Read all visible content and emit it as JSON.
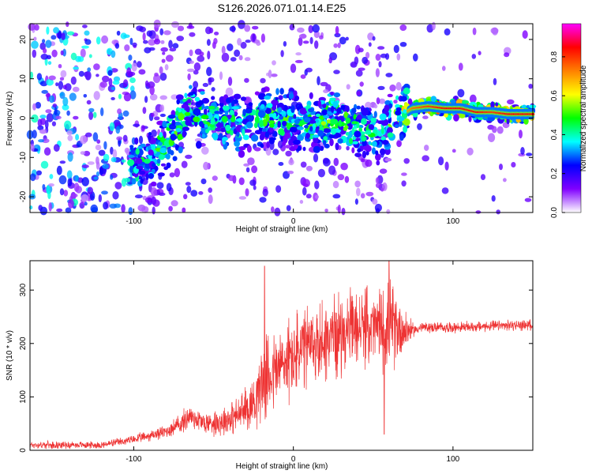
{
  "chart_data": [
    {
      "type": "heatmap",
      "title": "S126.2026.071.01.14.E25",
      "xlabel": "Height of straight line (km)",
      "ylabel": "Frequency (Hz)",
      "xlim": [
        -165,
        150
      ],
      "ylim": [
        -24,
        24
      ],
      "xticks": [
        -100,
        0,
        100
      ],
      "yticks": [
        -20,
        -10,
        0,
        10,
        20
      ],
      "colorbar": {
        "label": "Normalized spectral amplitude",
        "range": [
          0,
          0.97
        ],
        "ticks": [
          0.0,
          0.2,
          0.4,
          0.6,
          0.8
        ],
        "tick_labels": [
          "0.0",
          "0.2",
          "0.4",
          "0.6",
          "0.8"
        ],
        "colors": [
          "#ffffff",
          "#8000ff",
          "#0000ff",
          "#00ffff",
          "#00ff00",
          "#ffff00",
          "#ff8000",
          "#ff0000",
          "#ff00ff"
        ]
      },
      "ridge": {
        "x": [
          -100,
          -90,
          -80,
          -70,
          -65,
          -55,
          -45,
          -35,
          -25,
          -15,
          -5,
          5,
          15,
          25,
          35,
          45,
          55,
          65,
          75,
          85,
          95,
          105,
          115,
          125,
          135,
          150
        ],
        "y": [
          -12,
          -11,
          -6,
          -1,
          2,
          0,
          -1,
          -2,
          -1,
          1,
          0,
          -1,
          -2,
          1,
          -2,
          -3,
          -4,
          0,
          2.5,
          3,
          2.5,
          2.5,
          1.5,
          1.5,
          1,
          1
        ],
        "amplitude": [
          0.45,
          0.45,
          0.5,
          0.55,
          0.5,
          0.5,
          0.45,
          0.45,
          0.45,
          0.5,
          0.5,
          0.45,
          0.5,
          0.55,
          0.5,
          0.45,
          0.45,
          0.55,
          0.75,
          0.8,
          0.85,
          0.85,
          0.85,
          0.8,
          0.85,
          0.85
        ]
      },
      "x_tick_labels": [
        "-100",
        "0",
        "100"
      ],
      "y_tick_labels": [
        "-20",
        "-10",
        "0",
        "10",
        "20"
      ]
    },
    {
      "type": "line",
      "title": "",
      "xlabel": "Height of straight line (km)",
      "ylabel": "SNR (10 * v/v)",
      "xlim": [
        -165,
        150
      ],
      "ylim": [
        0,
        355
      ],
      "xticks": [
        -100,
        0,
        100
      ],
      "yticks": [
        0,
        100,
        200,
        300
      ],
      "x_tick_labels": [
        "-100",
        "0",
        "100"
      ],
      "y_tick_labels": [
        "0",
        "100",
        "200",
        "300"
      ],
      "series": [
        {
          "name": "SNR",
          "color": "#ee3333",
          "envelope": {
            "x": [
              -165,
              -120,
              -100,
              -80,
              -70,
              -65,
              -55,
              -45,
              -35,
              -25,
              -20,
              -15,
              -5,
              5,
              15,
              25,
              35,
              45,
              55,
              60,
              65,
              70,
              75,
              80,
              100,
              150
            ],
            "mean": [
              10,
              10,
              20,
              35,
              50,
              65,
              50,
              55,
              65,
              90,
              130,
              140,
              165,
              185,
              200,
              215,
              225,
              230,
              230,
              235,
              230,
              225,
              225,
              230,
              230,
              235
            ],
            "spread": [
              8,
              8,
              10,
              15,
              25,
              30,
              25,
              35,
              40,
              60,
              90,
              95,
              95,
              100,
              95,
              95,
              85,
              85,
              90,
              100,
              85,
              50,
              15,
              12,
              12,
              12
            ]
          },
          "peaks": [
            {
              "x": -18,
              "y": 345
            },
            {
              "x": 60,
              "y": 360
            },
            {
              "x": 57,
              "y": 30
            }
          ]
        }
      ]
    }
  ]
}
